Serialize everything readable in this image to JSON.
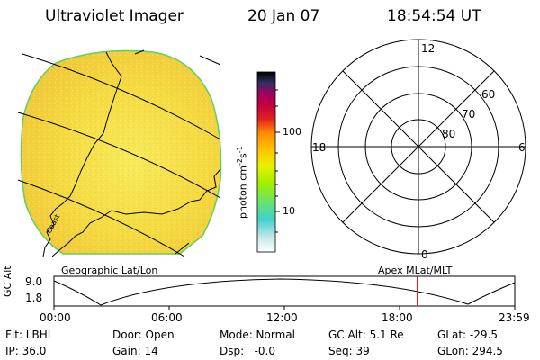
{
  "header": {
    "title": "Ultraviolet Imager",
    "date": "20 Jan 07",
    "time": "18:54:54 UT"
  },
  "colorbar": {
    "unit": "photon cm",
    "exp1": "-2",
    "mid": "s",
    "exp2": "-1",
    "tick_100": "100",
    "tick_10": "10",
    "colors": [
      "#ffffff",
      "#c8e8e8",
      "#40d0d0",
      "#60e080",
      "#a0f000",
      "#e8f000",
      "#ffc800",
      "#ff8c00",
      "#e02020",
      "#c00040",
      "#a00060",
      "#303060",
      "#000000"
    ]
  },
  "image_panel": {
    "coastline_label": "Coast",
    "base_color": "#f6e24a"
  },
  "polar_plot": {
    "mlt_12": "12",
    "mlt_18": "18",
    "mlt_6": "6",
    "mlt_0": "0",
    "lat_60": "60",
    "lat_70": "70",
    "lat_80": "80"
  },
  "orbit_panel": {
    "left_label": "Geographic Lat/Lon",
    "right_label": "Apex MLat/MLT",
    "axis_label": "GC Alt",
    "y_top": "9.0",
    "y_bottom": "1.8",
    "x_ticks": [
      "00:00",
      "06:00",
      "12:00",
      "18:00",
      "23:59"
    ],
    "marker_color": "#d02020",
    "marker_time_frac": 0.788
  },
  "footer": {
    "row1": [
      "Flt: LBHL",
      "Door: Open",
      "Mode: Normal",
      "GC Alt: 5.1 Re",
      "GLat: -29.5"
    ],
    "row2": [
      "IP: 36.0",
      "Gain: 14",
      "Dsp:   -0.0",
      "Seq: 39",
      "GLon: 294.5"
    ]
  }
}
